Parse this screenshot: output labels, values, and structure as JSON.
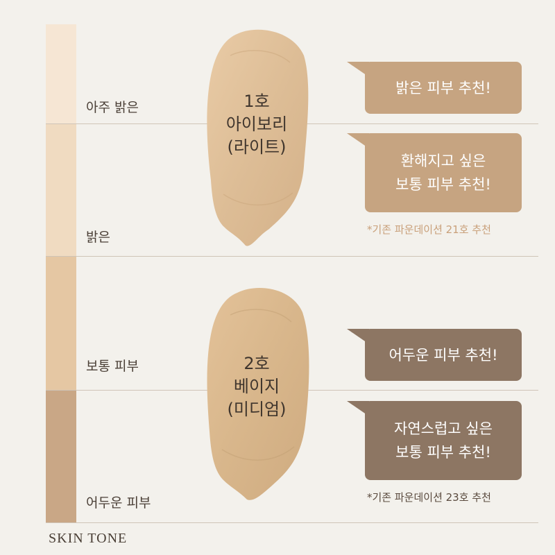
{
  "tones": [
    {
      "label": "아주 밝은",
      "color": "#f6e6d4"
    },
    {
      "label": "밝은",
      "color": "#f0dbc1"
    },
    {
      "label": "보통 피부",
      "color": "#e5c7a3"
    },
    {
      "label": "어두운 피부",
      "color": "#c9a786"
    }
  ],
  "shades": [
    {
      "number": "1호",
      "name": "아이보리",
      "sub": "(라이트)",
      "color": "#e2c39c"
    },
    {
      "number": "2호",
      "name": "베이지",
      "sub": "(미디엄)",
      "color": "#dcb98d"
    }
  ],
  "bubbles": [
    {
      "lines": [
        "밝은 피부 추천!"
      ],
      "style": "light"
    },
    {
      "lines": [
        "환해지고 싶은",
        "보통 피부 추천!"
      ],
      "style": "light"
    },
    {
      "lines": [
        "어두운 피부 추천!"
      ],
      "style": "dark"
    },
    {
      "lines": [
        "자연스럽고 싶은",
        "보통 피부 추천!"
      ],
      "style": "dark"
    }
  ],
  "notes": [
    "*기존 파운데이션 21호 추천",
    "*기존 파운데이션 23호 추천"
  ],
  "brand": "SKIN TONE",
  "colors": {
    "background": "#f3f1ec",
    "bubble_light": "#c6a481",
    "bubble_dark": "#8d7663",
    "divider": "#cfc4b7"
  }
}
